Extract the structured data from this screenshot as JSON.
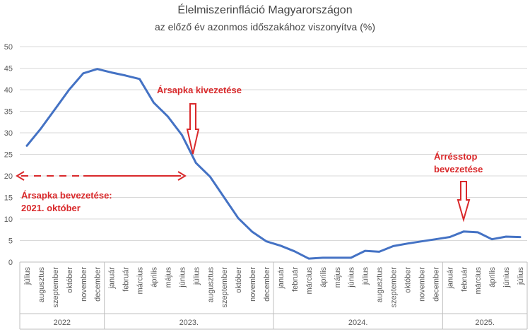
{
  "chart_data": {
    "type": "line",
    "title": "Élelmiszerinfláció Magyarországon",
    "subtitle": "az előző év azonmos időszakához viszonyítva (%)",
    "ylim": [
      0,
      50
    ],
    "yticks": [
      0,
      5,
      10,
      15,
      20,
      25,
      30,
      35,
      40,
      45,
      50
    ],
    "grid": true,
    "line_color": "#4472c4",
    "annotation_color": "#d9292b",
    "categories": [
      "július",
      "augusztus",
      "szeptember",
      "október",
      "november",
      "december",
      "január",
      "február",
      "március",
      "április",
      "május",
      "június",
      "július",
      "augusztus",
      "szeptember",
      "október",
      "november",
      "december",
      "január",
      "február",
      "március",
      "április",
      "május",
      "június",
      "július",
      "augusztus",
      "szeptember",
      "október",
      "november",
      "december",
      "január",
      "február",
      "március",
      "április",
      "június",
      "július"
    ],
    "year_groups": [
      {
        "label": "2022",
        "count": 6
      },
      {
        "label": "2023.",
        "count": 12
      },
      {
        "label": "2024.",
        "count": 12
      },
      {
        "label": "2025.",
        "count": 6
      }
    ],
    "series": [
      {
        "values": [
          27.0,
          31.0,
          35.5,
          40.0,
          43.8,
          44.8,
          44.0,
          43.3,
          42.5,
          37.0,
          33.8,
          29.5,
          23.0,
          19.8,
          15.0,
          10.2,
          7.0,
          4.8,
          3.8,
          2.5,
          0.8,
          1.0,
          1.0,
          1.0,
          2.6,
          2.4,
          3.7,
          4.3,
          4.8,
          5.3,
          5.8,
          7.1,
          6.9,
          5.3,
          5.9,
          5.8
        ]
      }
    ],
    "annotations": {
      "cap_removal": "Ársapka kivezetése",
      "cap_intro_line1": "Ársapka bevezetése:",
      "cap_intro_line2": "2021. október",
      "margin_stop_line1": "Árrésstop",
      "margin_stop_line2": "bevezetése"
    }
  }
}
